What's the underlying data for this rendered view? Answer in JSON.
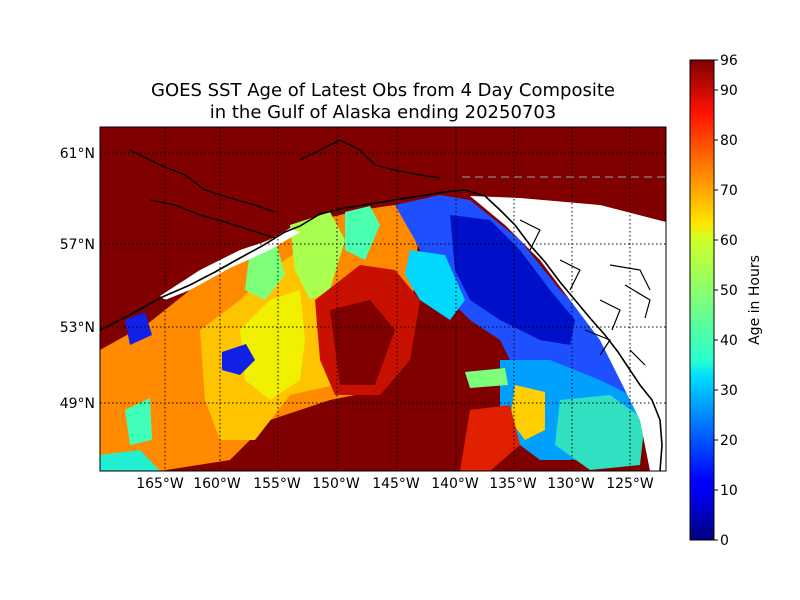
{
  "title": {
    "line1": "GOES SST Age of Latest Obs from 4 Day Composite",
    "line2": "in the Gulf of Alaska ending 20250703"
  },
  "map": {
    "lat_labels": [
      "61°N",
      "57°N",
      "53°N",
      "49°N"
    ],
    "lon_labels": [
      "165°W",
      "160°W",
      "155°W",
      "150°W",
      "145°W",
      "140°W",
      "135°W",
      "130°W",
      "125°W"
    ],
    "land_color": "#ffffff",
    "nodata_color": "#800000",
    "gridlines": "dotted"
  },
  "colorbar": {
    "label": "Age in Hours",
    "ticks": [
      "0",
      "10",
      "20",
      "30",
      "40",
      "50",
      "60",
      "70",
      "80",
      "90",
      "96"
    ],
    "min": 0,
    "max": 96,
    "colormap": "jet"
  }
}
